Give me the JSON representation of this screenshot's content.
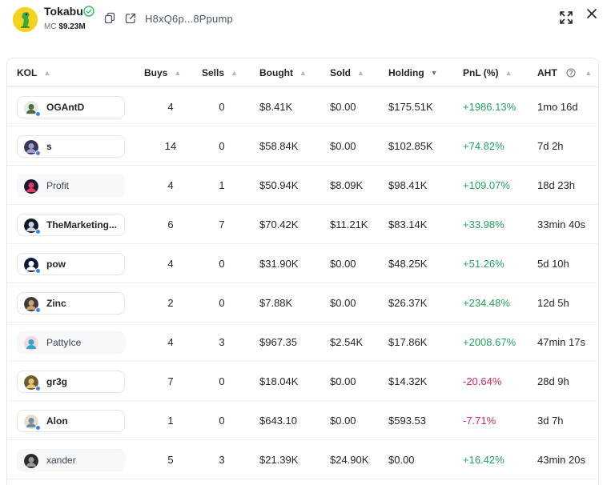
{
  "header": {
    "token_name": "Tokabu",
    "mc_label": "MC",
    "mc_value": "$9.23M",
    "address": "H8xQ6p...8Ppump",
    "icons": [
      "verified-icon",
      "copy-icon",
      "external-link-icon",
      "expand-icon",
      "close-icon"
    ]
  },
  "colors": {
    "positive": "#22a45d",
    "negative": "#e0245e",
    "verified": "#22c55e",
    "token_bg": "#f5d21c",
    "status_dot": "#3b82f6"
  },
  "table": {
    "columns": {
      "kol": "KOL",
      "buys": "Buys",
      "sells": "Sells",
      "bought": "Bought",
      "sold": "Sold",
      "holding": "Holding",
      "pnl": "PnL (%)",
      "aht": "AHT"
    },
    "rows": [
      {
        "kol": "OGAntD",
        "buys": "4",
        "sells": "0",
        "bought": "$8.41K",
        "sold": "$0.00",
        "holding": "$175.51K",
        "pnl": "+1986.13%",
        "aht": "1mo 16d"
      },
      {
        "kol": "s",
        "buys": "14",
        "sells": "0",
        "bought": "$58.84K",
        "sold": "$0.00",
        "holding": "$102.85K",
        "pnl": "+74.82%",
        "aht": "7d 2h"
      },
      {
        "kol": "Profit",
        "buys": "4",
        "sells": "1",
        "bought": "$50.94K",
        "sold": "$8.09K",
        "holding": "$98.41K",
        "pnl": "+109.07%",
        "aht": "18d 23h"
      },
      {
        "kol": "TheMarketing...",
        "buys": "6",
        "sells": "7",
        "bought": "$70.42K",
        "sold": "$11.21K",
        "holding": "$83.14K",
        "pnl": "+33.98%",
        "aht": "33min 40s"
      },
      {
        "kol": "pow",
        "buys": "4",
        "sells": "0",
        "bought": "$31.90K",
        "sold": "$0.00",
        "holding": "$48.25K",
        "pnl": "+51.26%",
        "aht": "5d 10h"
      },
      {
        "kol": "Zinc",
        "buys": "2",
        "sells": "0",
        "bought": "$7.88K",
        "sold": "$0.00",
        "holding": "$26.37K",
        "pnl": "+234.48%",
        "aht": "12d 5h"
      },
      {
        "kol": "PattyIce",
        "buys": "4",
        "sells": "3",
        "bought": "$967.35",
        "sold": "$2.54K",
        "holding": "$17.86K",
        "pnl": "+2008.67%",
        "aht": "47min 17s"
      },
      {
        "kol": "gr3g",
        "buys": "7",
        "sells": "0",
        "bought": "$18.04K",
        "sold": "$0.00",
        "holding": "$14.32K",
        "pnl": "-20.64%",
        "aht": "28d 9h"
      },
      {
        "kol": "Alon",
        "buys": "1",
        "sells": "0",
        "bought": "$643.10",
        "sold": "$0.00",
        "holding": "$593.53",
        "pnl": "-7.71%",
        "aht": "3d 7h"
      },
      {
        "kol": "xander",
        "buys": "5",
        "sells": "3",
        "bought": "$21.39K",
        "sold": "$24.90K",
        "holding": "$0.00",
        "pnl": "+16.42%",
        "aht": "43min 20s"
      }
    ]
  }
}
